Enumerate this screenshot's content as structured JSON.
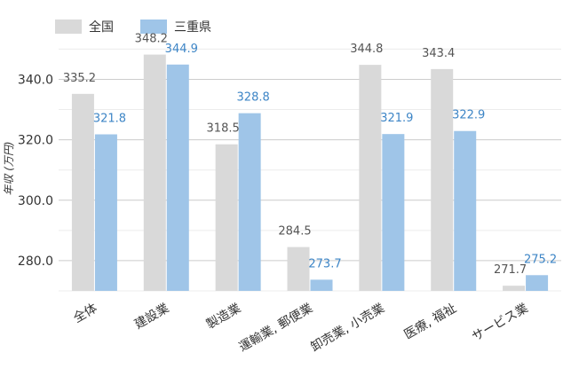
{
  "chart_data": {
    "type": "bar",
    "title": "",
    "xlabel": "",
    "ylabel": "年収 (万円)",
    "ylim": [
      270,
      351
    ],
    "yticks": [
      280.0,
      300.0,
      320.0,
      340.0
    ],
    "grid": true,
    "legend_position": "top-left",
    "categories": [
      "全体",
      "建設業",
      "製造業",
      "運輸業, 郵便業",
      "卸売業, 小売業",
      "医療, 福祉",
      "サービス業"
    ],
    "series": [
      {
        "name": "全国",
        "color": "#d9d9d9",
        "label_color": "#555555",
        "values": [
          335.2,
          348.2,
          318.5,
          284.5,
          344.8,
          343.4,
          271.7
        ]
      },
      {
        "name": "三重県",
        "color": "#9fc5e8",
        "label_color": "#3d85c6",
        "values": [
          321.8,
          344.9,
          328.8,
          273.7,
          321.9,
          322.9,
          275.2
        ]
      }
    ]
  }
}
